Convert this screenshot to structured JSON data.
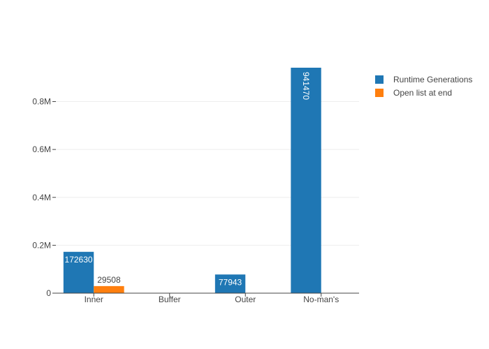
{
  "chart_data": {
    "type": "bar",
    "categories": [
      "Inner",
      "Buffer",
      "Outer",
      "No-man's"
    ],
    "series": [
      {
        "name": "Runtime Generations",
        "values": [
          172630,
          null,
          77943,
          941470
        ],
        "labels": [
          "172630",
          "",
          "77943",
          "941470"
        ],
        "color": "#1f77b4",
        "label_color": "#ffffff"
      },
      {
        "name": "Open list at end",
        "values": [
          29508,
          null,
          null,
          null
        ],
        "labels": [
          "29508",
          "",
          "",
          ""
        ],
        "color": "#ff7f0e",
        "label_color": "#444444"
      }
    ],
    "y_ticks": [
      0,
      200000,
      400000,
      600000,
      800000
    ],
    "y_tick_labels": [
      "0",
      "0.2M",
      "0.4M",
      "0.6M",
      "0.8M"
    ],
    "ylim": [
      0,
      991000
    ],
    "grid": true,
    "legend_position": "top-right",
    "title": "",
    "xlabel": "",
    "ylabel": ""
  }
}
